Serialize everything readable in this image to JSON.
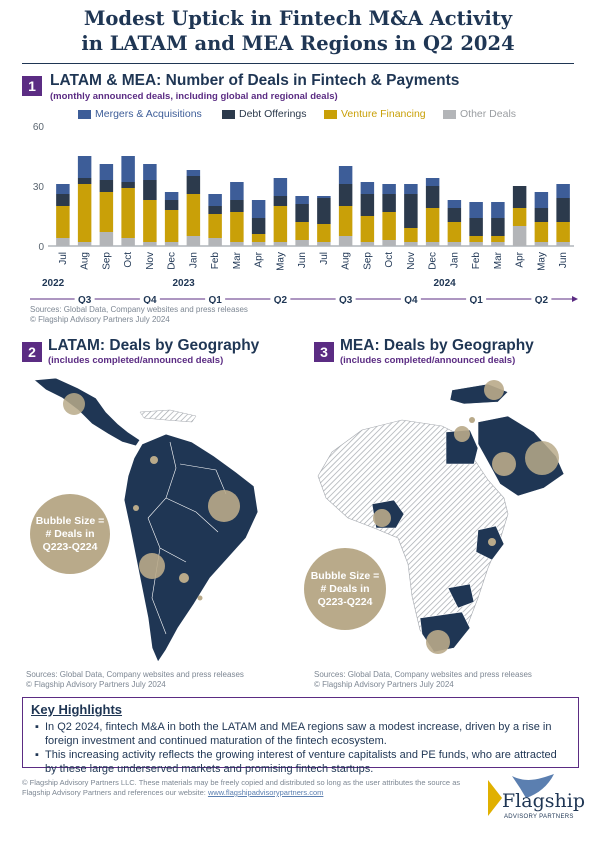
{
  "title": {
    "line1": "Modest Uptick in Fintech M&A Activity",
    "line2": "in LATAM and MEA Regions in Q2 2024"
  },
  "section1": {
    "number": "1",
    "title": "LATAM & MEA: Number of Deals in Fintech & Payments",
    "subtitle": "(monthly announced deals, including global and regional deals)",
    "source_line1": "Sources: Global Data, Company websites and press releases",
    "source_line2": "© Flagship Advisory Partners July 2024"
  },
  "section2": {
    "number": "2",
    "title": "LATAM: Deals by Geography",
    "subtitle": "(includes completed/announced deals)",
    "bubble_label_1": "Bubble Size =",
    "bubble_label_2": "# Deals in",
    "bubble_label_3": "Q223-Q224",
    "source_line1": "Sources: Global Data, Company websites and press releases",
    "source_line2": "© Flagship Advisory Partners July 2024"
  },
  "section3": {
    "number": "3",
    "title": "MEA: Deals by Geography",
    "subtitle": "(includes completed/announced deals)",
    "bubble_label_1": "Bubble Size =",
    "bubble_label_2": "# Deals in",
    "bubble_label_3": "Q223-Q224",
    "source_line1": "Sources: Global Data, Company websites and press releases",
    "source_line2": "© Flagship Advisory Partners July 2024"
  },
  "highlights": {
    "title": "Key Highlights",
    "bullet": "▪",
    "item1": "In Q2 2024, fintech M&A in both the LATAM and MEA regions saw a modest increase, driven by a rise in foreign investment and continued maturation of the fintech ecosystem.",
    "item2": "This increasing activity reflects the growing interest of venture capitalists and PE funds, who are attracted by these large underserved markets and promising fintech startups."
  },
  "footer": {
    "text": "© Flagship Advisory Partners LLC. These materials may be freely copied and distributed so long as the user attributes the source as Flagship Advisory Partners and references our website: ",
    "link": "www.flagshipadvisorypartners.com",
    "logo_text": "Flagship",
    "logo_sub": "ADVISORY PARTNERS"
  },
  "colors": {
    "navy": "#1f3654",
    "purple": "#5b2c83",
    "ma": "#3d5d98",
    "debt": "#2c3a4c",
    "vc": "#c9a008",
    "other": "#b3b5b8",
    "bubble": "#b9aa8a"
  },
  "chart_data": {
    "type": "bar",
    "stacked": true,
    "title": "",
    "xlabel": "",
    "ylabel": "",
    "ylim": [
      0,
      60
    ],
    "yticks": [
      0,
      30,
      60
    ],
    "grid": false,
    "legend_position": "top",
    "categories": [
      "Jul",
      "Aug",
      "Sep",
      "Oct",
      "Nov",
      "Dec",
      "Jan",
      "Feb",
      "Mar",
      "Apr",
      "May",
      "Jun",
      "Jul",
      "Aug",
      "Sep",
      "Oct",
      "Nov",
      "Dec",
      "Jan",
      "Feb",
      "Mar",
      "Apr",
      "May",
      "Jun"
    ],
    "years": [
      {
        "label": "2022",
        "start": 0
      },
      {
        "label": "2023",
        "start": 6
      },
      {
        "label": "2024",
        "start": 18
      }
    ],
    "quarters": [
      {
        "label": "Q3",
        "start": 0,
        "end": 2
      },
      {
        "label": "Q4",
        "start": 3,
        "end": 5
      },
      {
        "label": "Q1",
        "start": 6,
        "end": 8
      },
      {
        "label": "Q2",
        "start": 9,
        "end": 11
      },
      {
        "label": "Q3",
        "start": 12,
        "end": 14
      },
      {
        "label": "Q4",
        "start": 15,
        "end": 17
      },
      {
        "label": "Q1",
        "start": 18,
        "end": 20
      },
      {
        "label": "Q2",
        "start": 21,
        "end": 23
      }
    ],
    "series": [
      {
        "name": "Other Deals",
        "color": "#b3b5b8",
        "values": [
          4,
          2,
          7,
          4,
          2,
          2,
          5,
          4,
          2,
          2,
          2,
          3,
          2,
          5,
          2,
          3,
          2,
          2,
          2,
          2,
          2,
          10,
          2,
          2
        ]
      },
      {
        "name": "Venture Financing",
        "color": "#c9a008",
        "values": [
          16,
          29,
          20,
          25,
          21,
          16,
          21,
          12,
          15,
          4,
          18,
          9,
          9,
          15,
          13,
          14,
          7,
          17,
          10,
          3,
          3,
          9,
          10,
          10
        ]
      },
      {
        "name": "Debt Offerings",
        "color": "#2c3a4c",
        "values": [
          6,
          3,
          6,
          3,
          10,
          5,
          9,
          4,
          6,
          8,
          5,
          9,
          13,
          11,
          11,
          9,
          17,
          11,
          7,
          9,
          9,
          11,
          7,
          12
        ]
      },
      {
        "name": "Mergers & Acquisitions",
        "color": "#3d5d98",
        "values": [
          5,
          11,
          8,
          13,
          8,
          4,
          3,
          6,
          9,
          9,
          9,
          4,
          1,
          9,
          6,
          5,
          5,
          4,
          4,
          8,
          8,
          0,
          8,
          7
        ]
      }
    ],
    "legend_order": [
      "Mergers & Acquisitions",
      "Debt Offerings",
      "Venture Financing",
      "Other Deals"
    ]
  }
}
